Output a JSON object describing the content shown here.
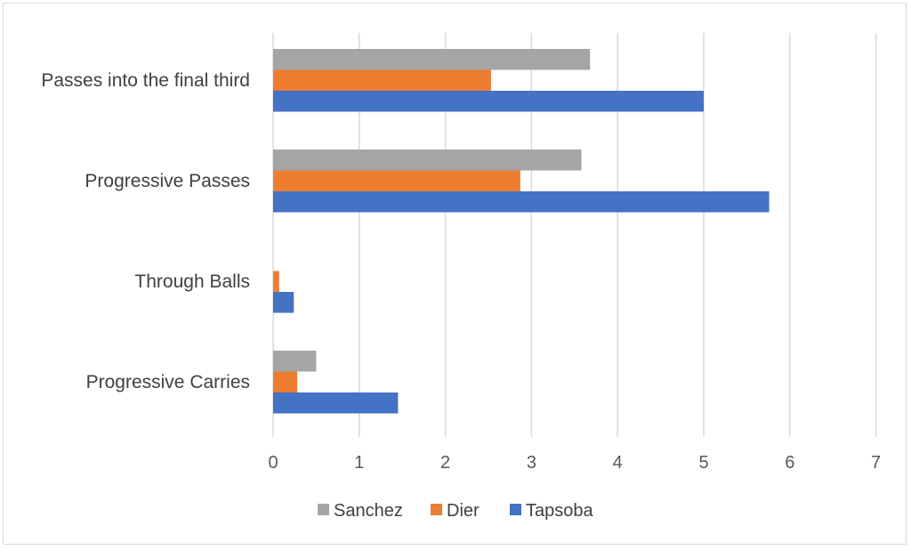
{
  "chart_data": {
    "type": "bar",
    "orientation": "horizontal",
    "title": "",
    "xlabel": "",
    "ylabel": "",
    "xlim": [
      0,
      7
    ],
    "x_ticks": [
      "0",
      "1",
      "2",
      "3",
      "4",
      "5",
      "6",
      "7"
    ],
    "grid": true,
    "legend_position": "bottom",
    "categories": [
      "Passes into the final third",
      "Progressive Passes",
      "Through Balls",
      "Progressive Carries"
    ],
    "series": [
      {
        "name": "Sanchez",
        "color": "#a5a5a5",
        "values": [
          3.68,
          3.58,
          0,
          0.5
        ]
      },
      {
        "name": "Dier",
        "color": "#ed7d31",
        "values": [
          2.53,
          2.87,
          0.07,
          0.28
        ]
      },
      {
        "name": "Tapsoba",
        "color": "#4472c4",
        "values": [
          5.0,
          5.76,
          0.24,
          1.45
        ]
      }
    ]
  }
}
